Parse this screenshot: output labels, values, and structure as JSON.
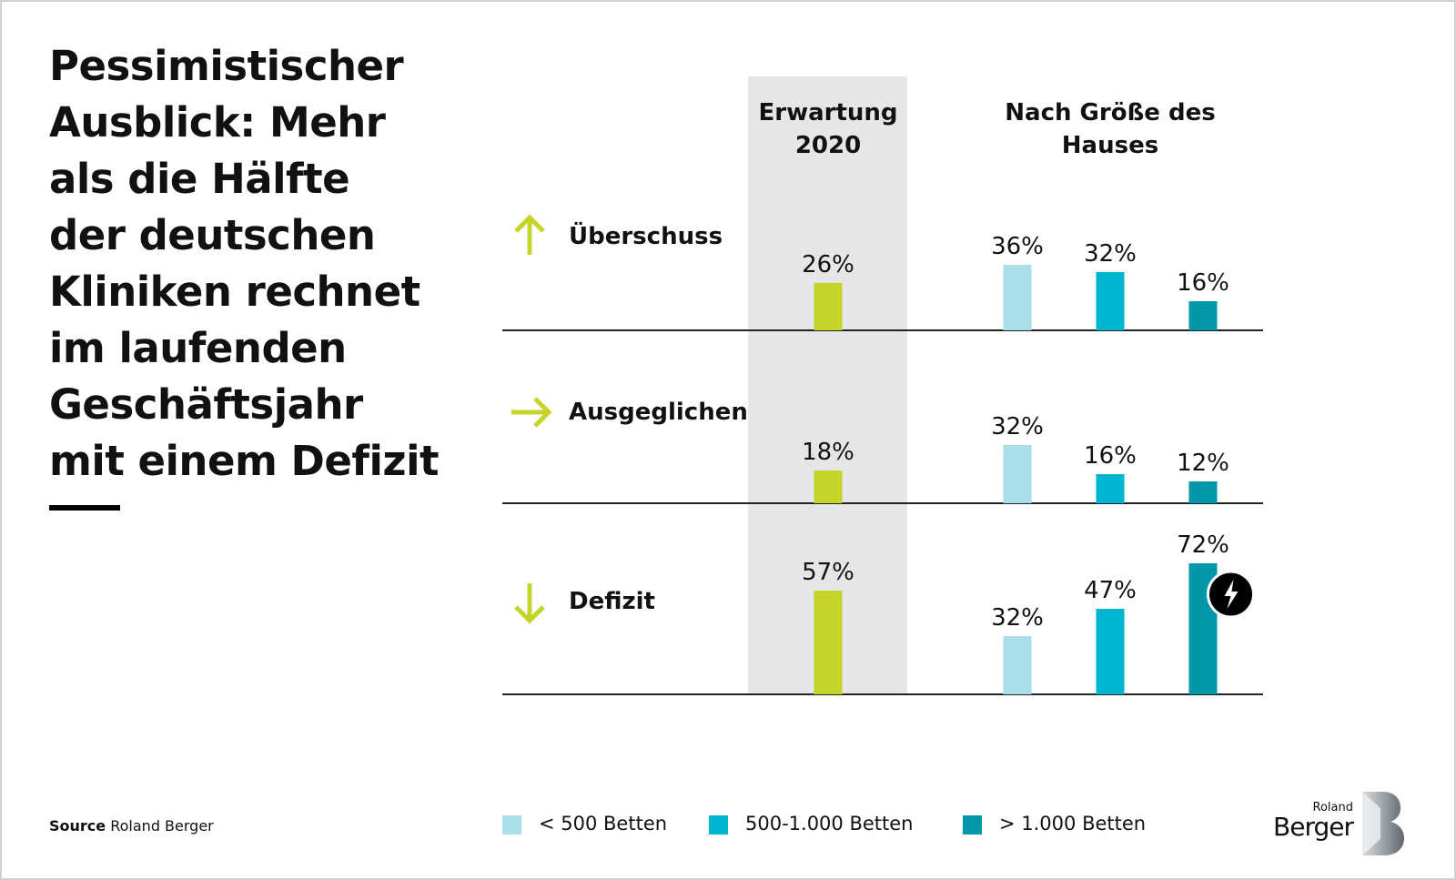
{
  "headline": [
    "Pessimistischer",
    "Ausblick: Mehr",
    "als die Hälfte",
    "der deutschen",
    "Kliniken rechnet",
    "im laufenden",
    "Geschäftsjahr",
    "mit einem Defizit"
  ],
  "source": {
    "label": "Source",
    "text": "Roland Berger"
  },
  "logo": {
    "small": "Roland",
    "large": "Berger",
    "icon": "roland-berger-b-logo"
  },
  "colors": {
    "lime": "#c6d42a",
    "light_blue": "#a8dde9",
    "cyan": "#00b5d1",
    "teal": "#0097a8",
    "highlight": "#e5e6e7",
    "arrow": "#c6d42a"
  },
  "chart_data": {
    "type": "bar",
    "title": "Pessimistischer Ausblick: Mehr als die Hälfte der deutschen Kliniken rechnet im laufenden Geschäftsjahr mit einem Defizit",
    "column_headers": [
      "Erwartung 2020",
      "Nach Größe des Hauses"
    ],
    "categories": [
      "Überschuss",
      "Ausgeglichen",
      "Defizit"
    ],
    "category_icons": [
      "arrow-up-icon",
      "arrow-right-icon",
      "arrow-down-icon"
    ],
    "unit": "%",
    "series": [
      {
        "name": "Erwartung 2020",
        "values": [
          26,
          18,
          57
        ]
      },
      {
        "name": "< 500 Betten",
        "values": [
          36,
          32,
          32
        ]
      },
      {
        "name": "500-1.000 Betten",
        "values": [
          32,
          16,
          47
        ]
      },
      {
        "name": "> 1.000 Betten",
        "values": [
          16,
          12,
          72
        ]
      }
    ],
    "legend": [
      "< 500 Betten",
      "500-1.000 Betten",
      "> 1.000 Betten"
    ],
    "legend_position": "bottom",
    "annotation": {
      "series": "> 1.000 Betten",
      "category": "Defizit",
      "icon": "lightning-icon"
    },
    "grid": false
  }
}
